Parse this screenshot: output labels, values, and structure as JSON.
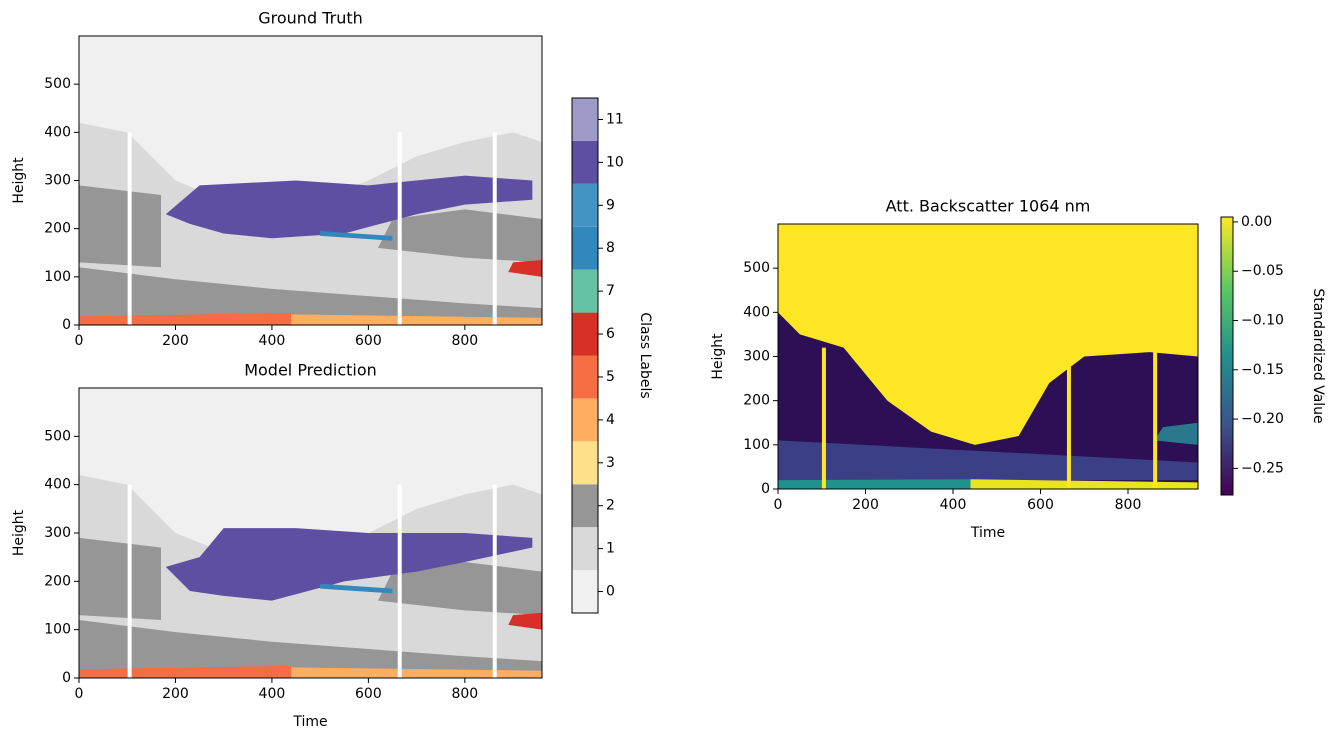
{
  "chart_data": [
    {
      "type": "heatmap",
      "title": "Ground Truth",
      "ylabel": "Height",
      "xlim": [
        0,
        960
      ],
      "ylim": [
        0,
        600
      ],
      "xticks": [
        0,
        200,
        400,
        600,
        800
      ],
      "yticks": [
        0,
        100,
        200,
        300,
        400,
        500
      ],
      "colorbar": {
        "label": "Class Labels",
        "lim": [
          -0.5,
          11.5
        ],
        "ticks": [
          0,
          1,
          2,
          3,
          4,
          5,
          6,
          7,
          8,
          9,
          10,
          11
        ],
        "colors": [
          "#f0f0f0",
          "#d9d9d9",
          "#969696",
          "#fee08b",
          "#fdae61",
          "#f46d43",
          "#d73027",
          "#66c2a5",
          "#3288bd",
          "#4393c3",
          "#5e4fa2",
          "#9e9ac8"
        ]
      }
    },
    {
      "type": "heatmap",
      "title": "Model Prediction",
      "xlabel": "Time",
      "ylabel": "Height",
      "xlim": [
        0,
        960
      ],
      "ylim": [
        0,
        600
      ],
      "xticks": [
        0,
        200,
        400,
        600,
        800
      ],
      "yticks": [
        0,
        100,
        200,
        300,
        400,
        500
      ]
    },
    {
      "type": "heatmap",
      "title": "Att. Backscatter 1064 nm",
      "xlabel": "Time",
      "ylabel": "Height",
      "xlim": [
        0,
        960
      ],
      "ylim": [
        0,
        600
      ],
      "xticks": [
        0,
        200,
        400,
        600,
        800
      ],
      "yticks": [
        0,
        100,
        200,
        300,
        400,
        500
      ],
      "colorbar": {
        "label": "Standardized Value",
        "colormap": "viridis",
        "lim": [
          -0.277,
          0.005
        ],
        "ticks": [
          {
            "value": 0,
            "label": "0.00"
          },
          {
            "value": -0.05,
            "label": "−0.05"
          },
          {
            "value": -0.1,
            "label": "−0.10"
          },
          {
            "value": -0.15,
            "label": "−0.15"
          },
          {
            "value": -0.2,
            "label": "−0.20"
          },
          {
            "value": -0.25,
            "label": "−0.25"
          }
        ]
      }
    }
  ]
}
